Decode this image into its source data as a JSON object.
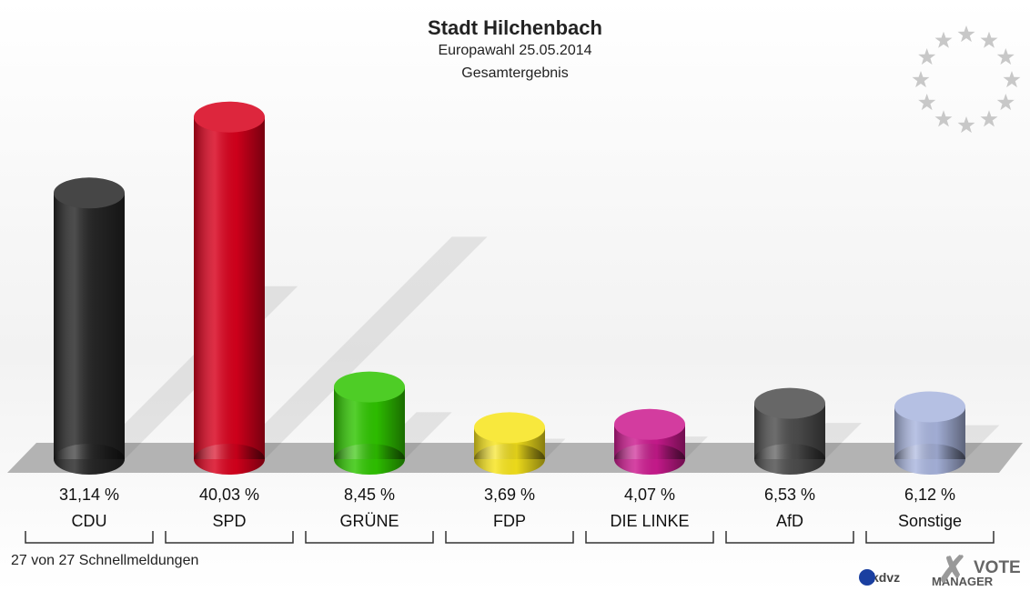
{
  "chart_data": {
    "type": "bar",
    "title": "Stadt Hilchenbach",
    "subtitle": "Europawahl 25.05.2014",
    "subtitle2": "Gesamtergebnis",
    "footer": "27 von 27 Schnellmeldungen",
    "logos": [
      "kdvz",
      "VOTE",
      "MANAGER"
    ],
    "categories": [
      "CDU",
      "SPD",
      "GRÜNE",
      "FDP",
      "DIE LINKE",
      "AfD",
      "Sonstige"
    ],
    "values": [
      31.14,
      40.03,
      8.45,
      3.69,
      4.07,
      6.53,
      6.12
    ],
    "value_labels": [
      "31,14 %",
      "40,03 %",
      "8,45 %",
      "3,69 %",
      "4,07 %",
      "6,53 %",
      "6,12 %"
    ],
    "colors": [
      "#262626",
      "#d8001c",
      "#2fc500",
      "#f7e41c",
      "#cc1a8f",
      "#4d4d4d",
      "#a9b5de"
    ]
  }
}
